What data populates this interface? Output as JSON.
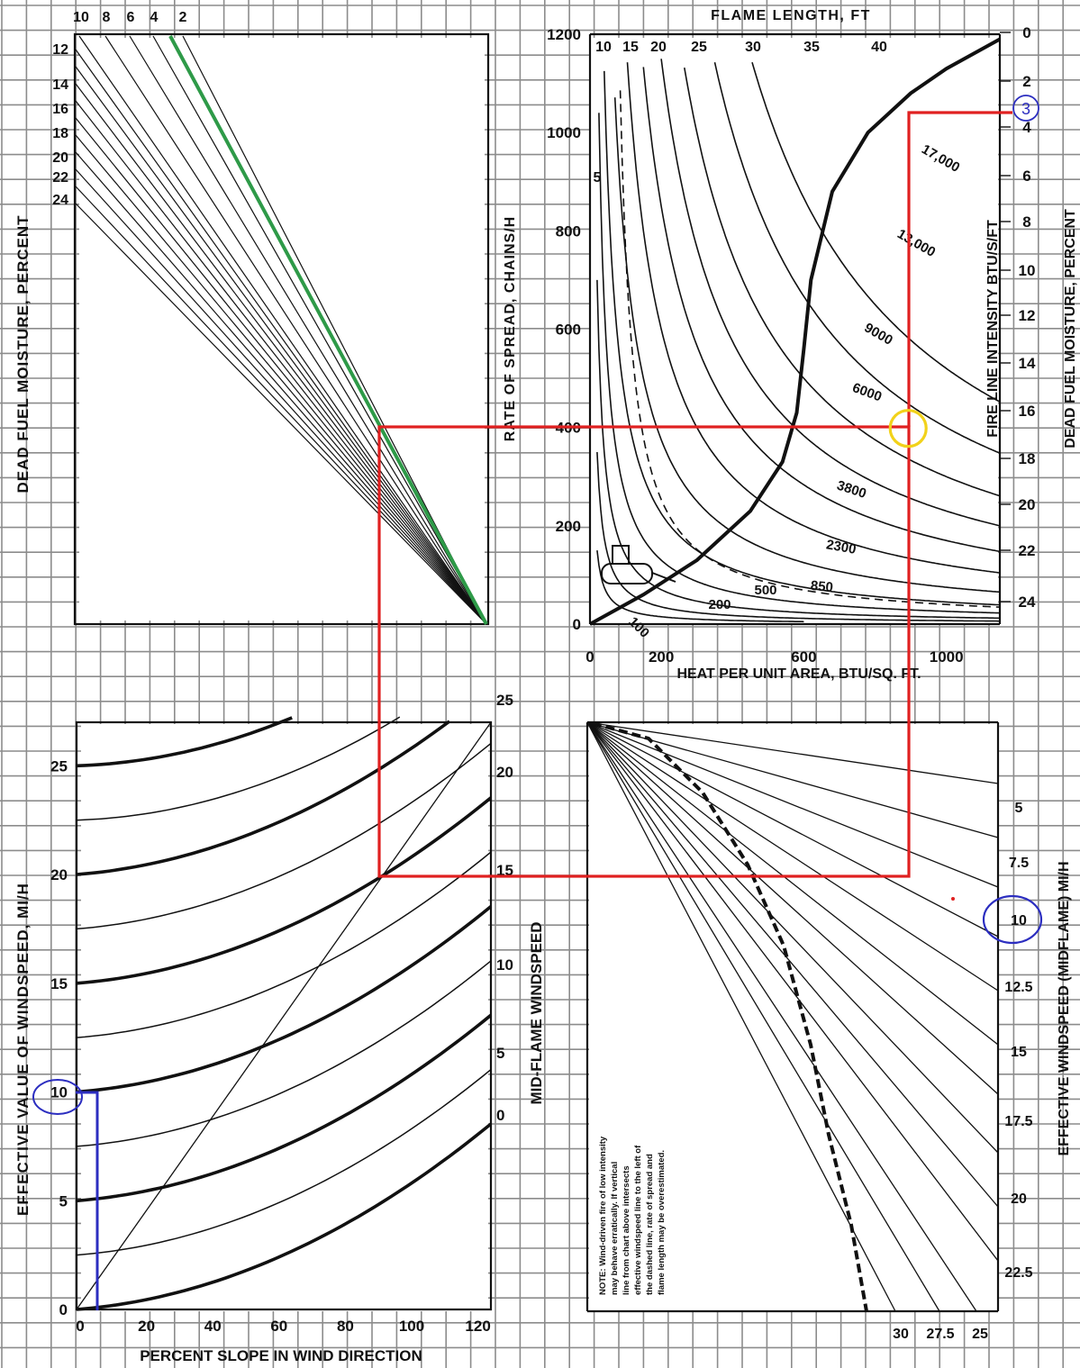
{
  "colors": {
    "grid": "#8c8c8c",
    "ink": "#111111",
    "red_overlay": "#e02020",
    "green_line": "#2e9a48",
    "blue_marker": "#2c2ec0",
    "yellow_circle": "#f2d21a"
  },
  "chart_data": [
    {
      "panel": "upper-left",
      "type": "line",
      "title": "",
      "ylabel": "DEAD FUEL MOISTURE, PERCENT",
      "top_tick_labels": [
        "10",
        "8",
        "6",
        "4",
        "2"
      ],
      "left_tick_labels": [
        "12",
        "14",
        "16",
        "18",
        "20",
        "22",
        "24"
      ],
      "highlighted_line": "2"
    },
    {
      "panel": "upper-right",
      "type": "line",
      "title": "FLAME LENGTH, FT",
      "xlabel": "HEAT PER UNIT AREA, BTU/SQ. FT.",
      "ylabel": "RATE OF SPREAD, CHAINS/H",
      "right_label_1": "FIRE LINE INTENSITY BTU/S/FT",
      "right_label_2": "DEAD FUEL MOISTURE, PERCENT",
      "xlim": [
        0,
        1150
      ],
      "ylim": [
        0,
        1200
      ],
      "x_ticks": [
        "0",
        "200",
        "600",
        "1000"
      ],
      "y_ticks": [
        "0",
        "200",
        "400",
        "600",
        "800",
        "1000",
        "1200"
      ],
      "flame_length_labels": [
        "10",
        "15",
        "20",
        "25",
        "30",
        "35",
        "40",
        "5"
      ],
      "intensity_labels": [
        "17,000",
        "13,000",
        "9000",
        "6000",
        "3800",
        "2300",
        "850",
        "500",
        "200",
        "100"
      ],
      "moisture_ticks": [
        "0",
        "2",
        "4",
        "6",
        "8",
        "10",
        "12",
        "14",
        "16",
        "18",
        "20",
        "22",
        "24"
      ],
      "marker_moisture": "3",
      "highlight_point": {
        "heat_per_unit_area": 870,
        "rate_of_spread": 400
      }
    },
    {
      "panel": "lower-left",
      "type": "line",
      "xlabel": "PERCENT SLOPE IN WIND DIRECTION",
      "ylabel": "EFFECTIVE VALUE OF WINDSPEED, MI/H",
      "right_label": "MID-FLAME WINDSPEED",
      "xlim": [
        0,
        125
      ],
      "ylim": [
        0,
        27
      ],
      "x_ticks": [
        "0",
        "20",
        "40",
        "60",
        "80",
        "100",
        "120"
      ],
      "y_ticks": [
        "0",
        "5",
        "10",
        "15",
        "20",
        "25"
      ],
      "midflame_ticks": [
        "0",
        "5",
        "10",
        "15",
        "20",
        "25"
      ],
      "marker_windspeed": "10",
      "marker_slope": 8
    },
    {
      "panel": "lower-right",
      "type": "line",
      "right_label": "EFFECTIVE WINDSPEED (MIDFLAME) MI/H",
      "right_ticks": [
        "5",
        "7.5",
        "10",
        "12.5",
        "15",
        "17.5",
        "20",
        "22.5"
      ],
      "bottom_ticks": [
        "30",
        "27.5",
        "25"
      ],
      "marker_windspeed": "10",
      "note": [
        "NOTE: Wind-driven fire of low intensity",
        "may behave erratically. If vertical",
        "line from chart above intersects",
        "effective windspeed line to the left of",
        "the dashed line, rate of spread and",
        "flame length may be overestimated."
      ]
    }
  ]
}
